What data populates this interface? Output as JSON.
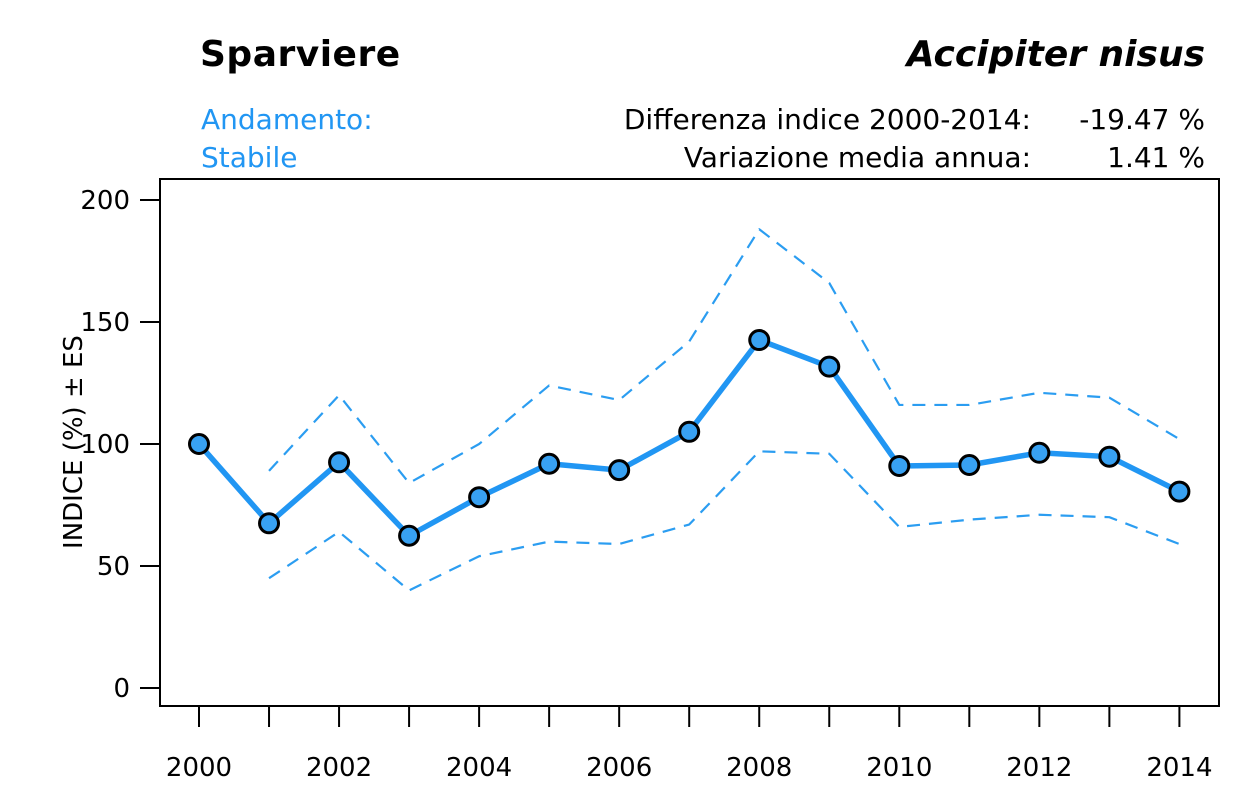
{
  "header": {
    "title": "Sparviere",
    "species": "Accipiter nisus",
    "trend_label": "Andamento:",
    "trend_value": "Stabile",
    "stats": [
      {
        "label": "Differenza indice 2000-2014:",
        "value": "-19.47 %"
      },
      {
        "label": "Variazione media annua:",
        "value": "1.41 %"
      }
    ]
  },
  "chart_data": {
    "type": "line",
    "title": "Sparviere",
    "x": [
      2000,
      2001,
      2002,
      2003,
      2004,
      2005,
      2006,
      2007,
      2008,
      2009,
      2010,
      2011,
      2012,
      2013,
      2014
    ],
    "series": [
      {
        "name": "INDICE",
        "style": "solid",
        "marker": "circle",
        "values": [
          100,
          67.5,
          92.5,
          62.4,
          78.2,
          91.9,
          89.3,
          105,
          142.6,
          131.7,
          91,
          91.4,
          96.4,
          94.8,
          80.5
        ]
      },
      {
        "name": "limite superiore ES",
        "style": "dashed",
        "start_x": 2001,
        "values": [
          89,
          120,
          84,
          100,
          124,
          118,
          142,
          188,
          166,
          116,
          116,
          121,
          119,
          102
        ]
      },
      {
        "name": "limite inferiore ES",
        "style": "dashed",
        "start_x": 2001,
        "values": [
          45,
          64,
          40,
          54,
          60,
          59,
          67,
          97,
          96,
          66,
          69,
          71,
          70,
          59
        ]
      }
    ],
    "xlabel": "",
    "ylabel": "INDICE (%) ± ES",
    "yticks": [
      0,
      50,
      100,
      150,
      200
    ],
    "xtick_labels": [
      "2000",
      "2002",
      "2004",
      "2006",
      "2008",
      "2010",
      "2012",
      "2014"
    ],
    "x_tick_every_year": true,
    "ylim": [
      0,
      208
    ],
    "xlim": [
      1999.44,
      2014.56
    ],
    "grid": false,
    "legend": "none",
    "colors": {
      "line": "#2196F3",
      "dashed": "#2B9DF1",
      "marker_fill": "#38A1F2",
      "marker_stroke": "#000000",
      "axis": "#000000",
      "accent_text": "#2196F3"
    }
  }
}
